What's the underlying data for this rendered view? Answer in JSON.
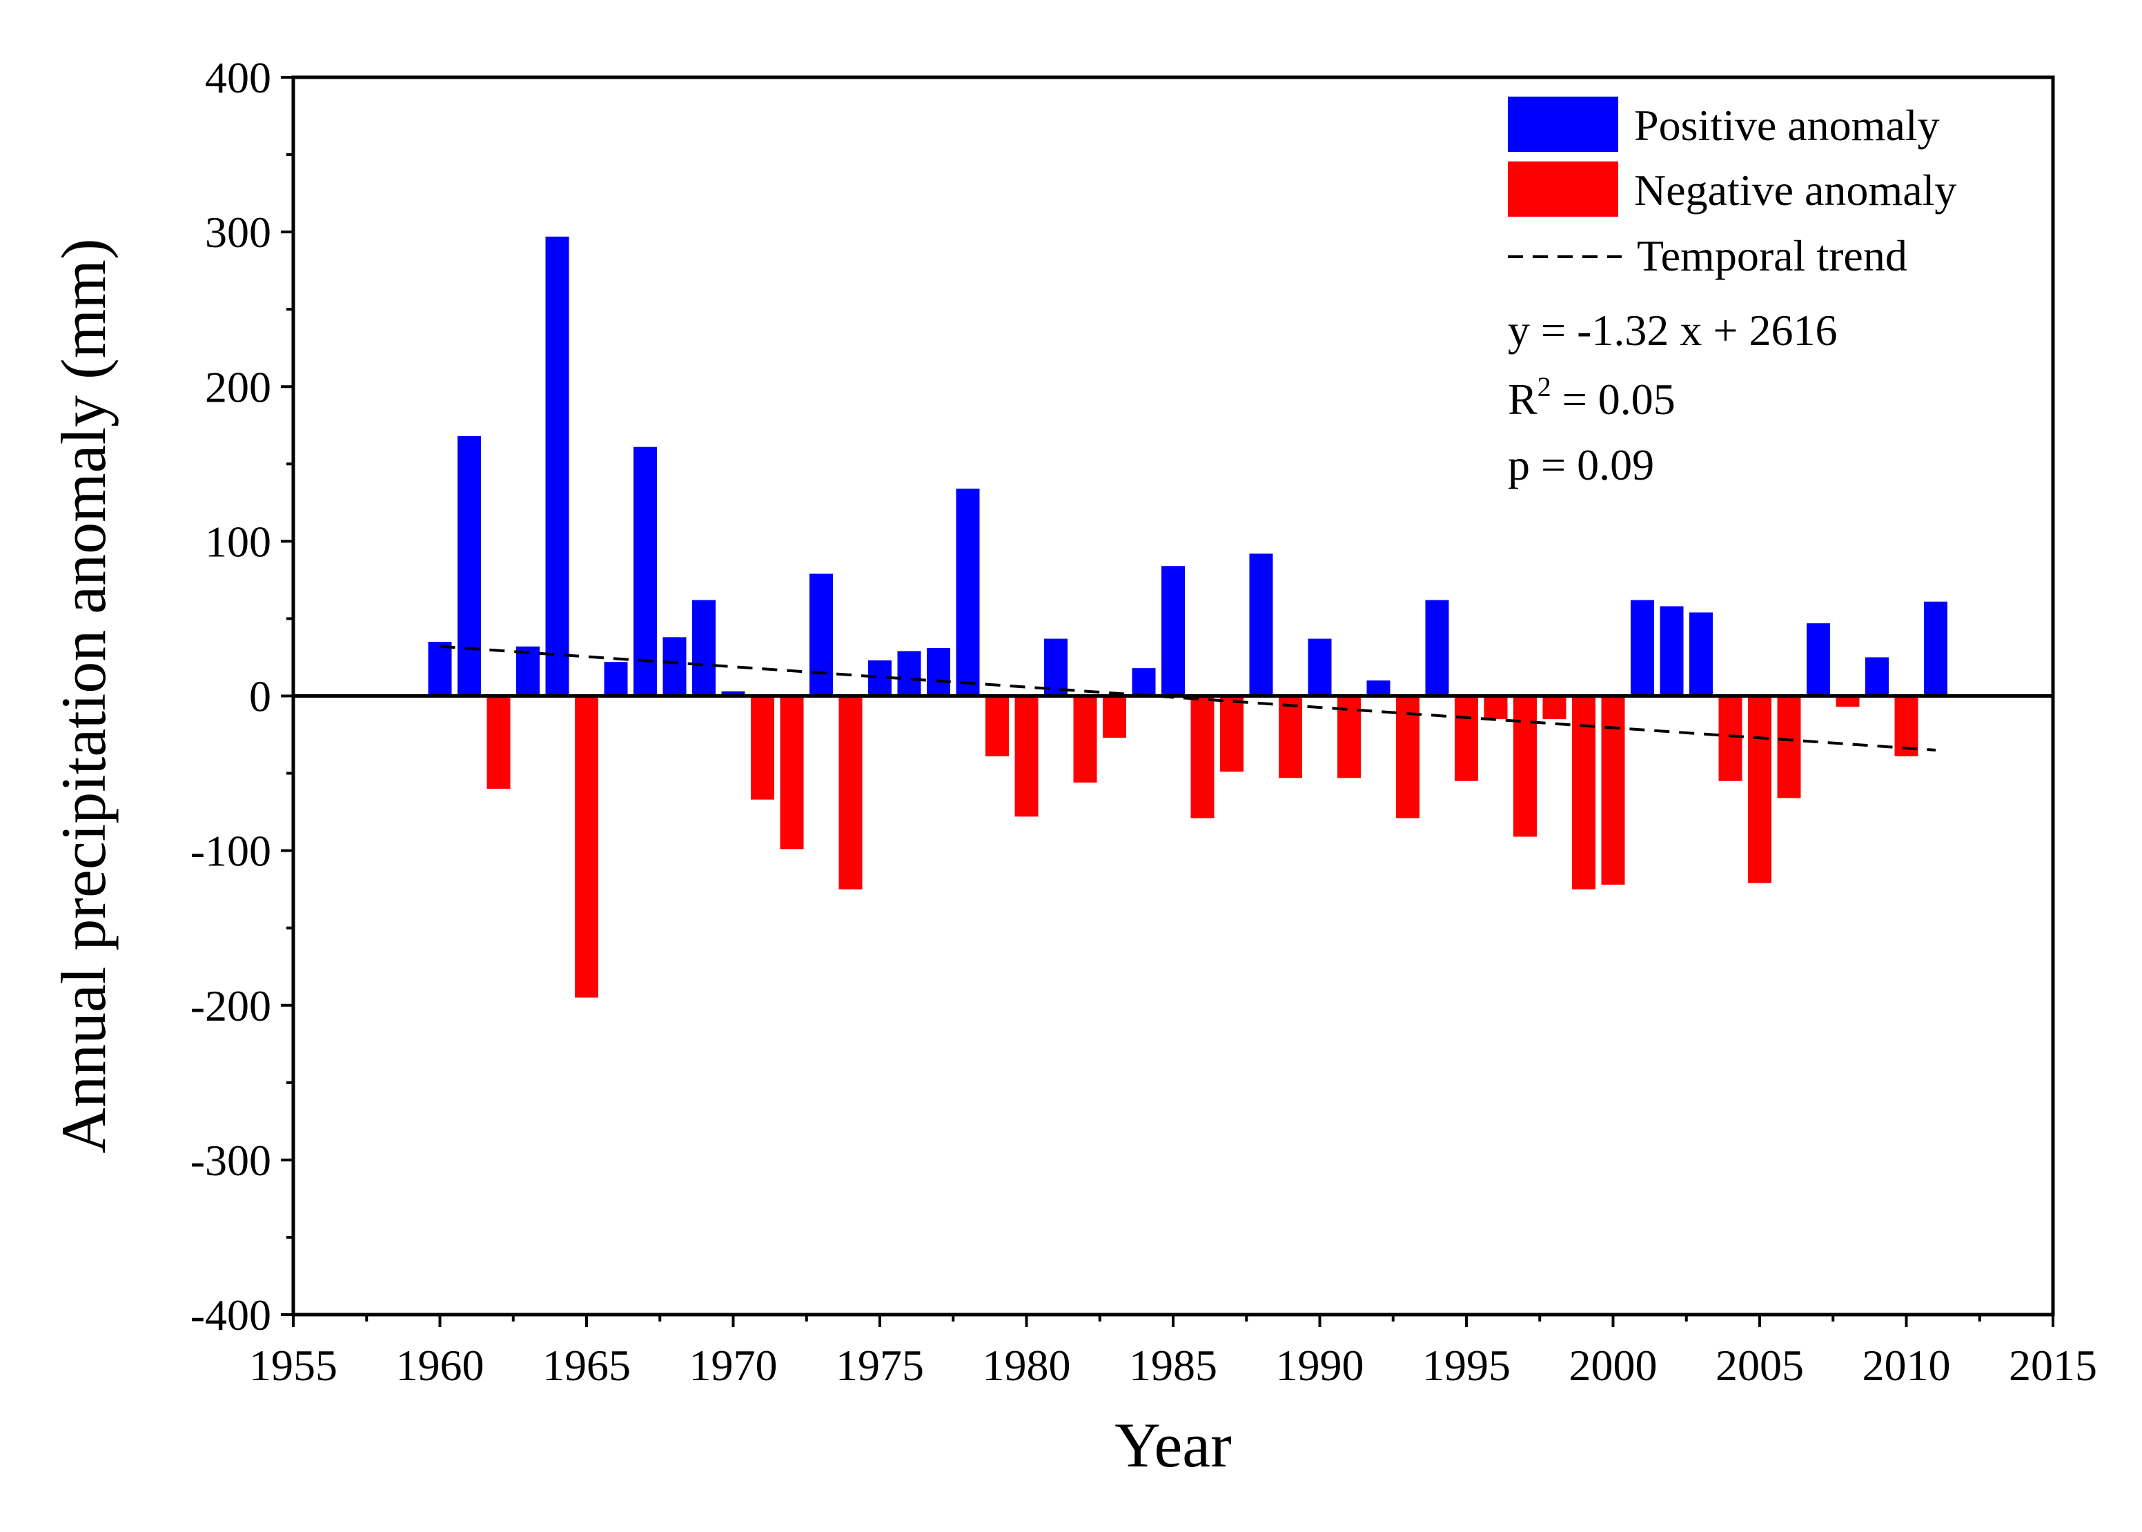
{
  "chart_data": {
    "type": "bar",
    "title": "",
    "xlabel": "Year",
    "ylabel": "Annual precipitation anomaly (mm)",
    "xlim": [
      1955,
      2015
    ],
    "ylim": [
      -400,
      400
    ],
    "xticks": [
      "1955",
      "1960",
      "1965",
      "1970",
      "1975",
      "1980",
      "1985",
      "1990",
      "1995",
      "2000",
      "2005",
      "2010",
      "2015"
    ],
    "yticks": [
      "400",
      "300",
      "200",
      "100",
      "0",
      "-100",
      "-200",
      "-300",
      "-400"
    ],
    "x": [
      1960,
      1961,
      1962,
      1963,
      1964,
      1965,
      1966,
      1967,
      1968,
      1969,
      1970,
      1971,
      1972,
      1973,
      1974,
      1975,
      1976,
      1977,
      1978,
      1979,
      1980,
      1981,
      1982,
      1983,
      1984,
      1985,
      1986,
      1987,
      1988,
      1989,
      1990,
      1991,
      1992,
      1993,
      1994,
      1995,
      1996,
      1997,
      1998,
      1999,
      2000,
      2001,
      2002,
      2003,
      2004,
      2005,
      2006,
      2007,
      2008,
      2009,
      2010,
      2011
    ],
    "values": [
      35,
      168,
      -60,
      32,
      297,
      -195,
      22,
      161,
      38,
      62,
      3,
      -67,
      -99,
      79,
      -125,
      23,
      29,
      31,
      134,
      -39,
      -78,
      37,
      -56,
      -27,
      18,
      84,
      -79,
      -49,
      92,
      -53,
      37,
      -53,
      10,
      -79,
      62,
      -55,
      -15,
      -91,
      -15,
      -125,
      -122,
      62,
      58,
      54,
      -55,
      -121,
      -66,
      47,
      -7,
      25,
      -39,
      61
    ],
    "series": [
      {
        "name": "Positive anomaly",
        "color": "#0000FF"
      },
      {
        "name": "Negative anomaly",
        "color": "#FF0000"
      }
    ],
    "trend": {
      "name": "Temporal trend",
      "style": "dashed",
      "color": "#000000",
      "x_range": [
        1960,
        2011
      ],
      "y_values": [
        32,
        -35
      ],
      "equation": "y = -1.32 x + 2616",
      "r2_prefix": "R",
      "r2_sup": "2",
      "r2_suffix": " = 0.05",
      "p_value": "p = 0.09"
    },
    "legend_position": "top-right"
  }
}
